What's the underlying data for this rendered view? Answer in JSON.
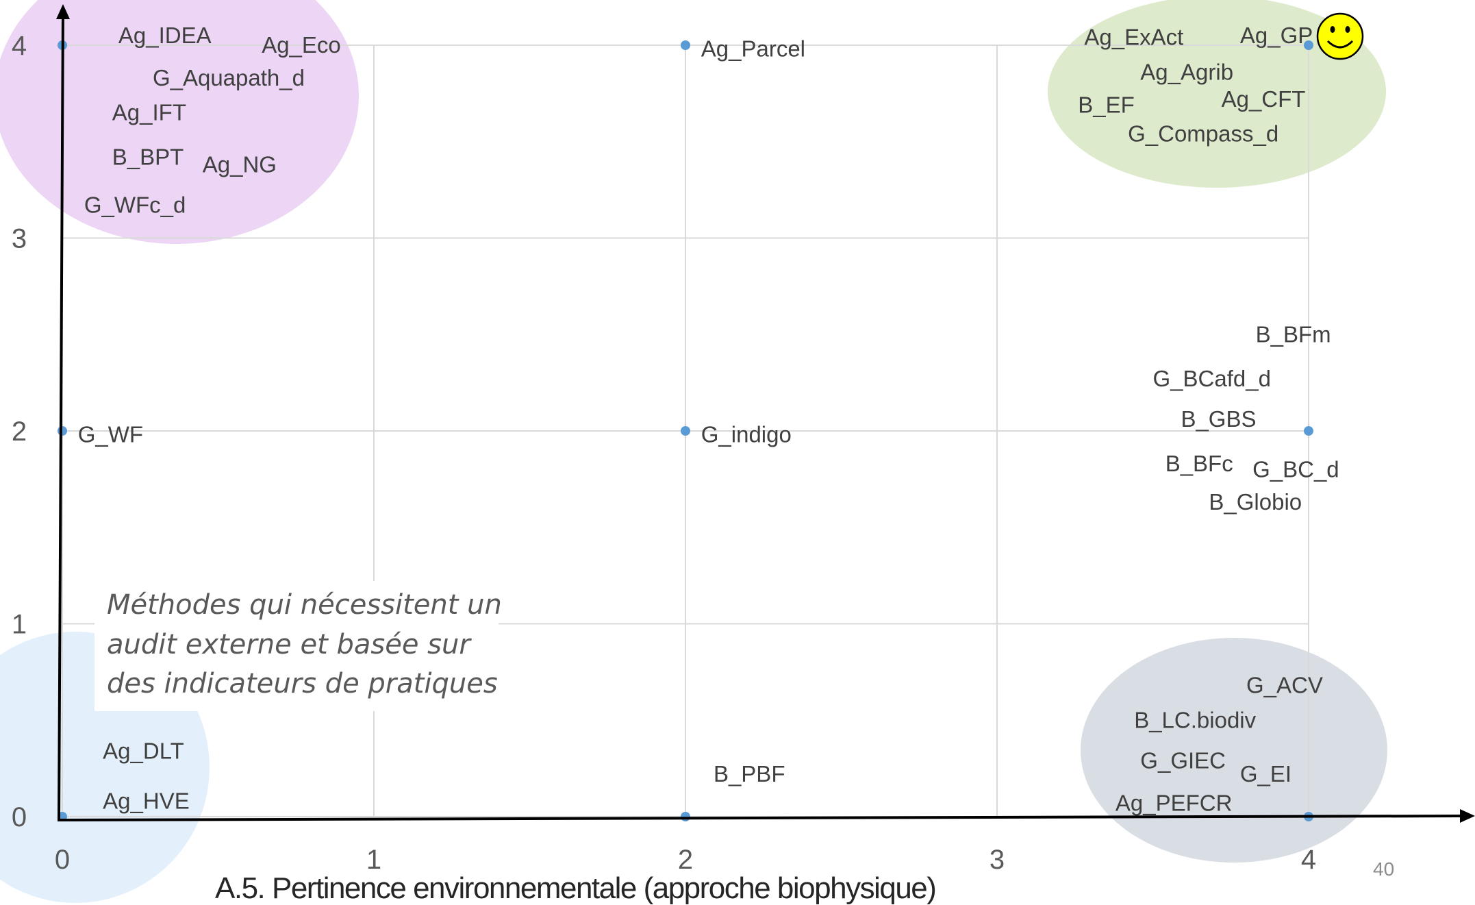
{
  "chart_data": {
    "type": "scatter",
    "xlabel": "A.5. Pertinence environnementale (approche biophysique)",
    "ylabel": "",
    "xlim": [
      0,
      4.5
    ],
    "ylim": [
      0,
      4.1
    ],
    "x_ticks": [
      "0",
      "1",
      "2",
      "3",
      "4"
    ],
    "y_ticks": [
      "0",
      "1",
      "2",
      "3",
      "4"
    ],
    "grid": true,
    "points": [
      {
        "x": 0,
        "y": 4
      },
      {
        "x": 2,
        "y": 4
      },
      {
        "x": 4,
        "y": 4
      },
      {
        "x": 0,
        "y": 2
      },
      {
        "x": 2,
        "y": 2
      },
      {
        "x": 4,
        "y": 2
      },
      {
        "x": 0,
        "y": 0
      },
      {
        "x": 2,
        "y": 0
      },
      {
        "x": 4,
        "y": 0
      }
    ],
    "labels": [
      {
        "text": "Ag_IDEA",
        "x": 0.18,
        "y": 4.05
      },
      {
        "text": "Ag_Eco",
        "x": 0.64,
        "y": 4.0
      },
      {
        "text": "G_Aquapath_d",
        "x": 0.29,
        "y": 3.83
      },
      {
        "text": "Ag_IFT",
        "x": 0.16,
        "y": 3.65
      },
      {
        "text": "B_BPT",
        "x": 0.16,
        "y": 3.42
      },
      {
        "text": "Ag_NG",
        "x": 0.45,
        "y": 3.38
      },
      {
        "text": "G_WFc_d",
        "x": 0.07,
        "y": 3.17
      },
      {
        "text": "Ag_Parcel",
        "x": 2.05,
        "y": 3.98
      },
      {
        "text": "Ag_ExAct",
        "x": 3.28,
        "y": 4.04
      },
      {
        "text": "Ag_GP",
        "x": 3.78,
        "y": 4.05
      },
      {
        "text": "Ag_Agrib",
        "x": 3.46,
        "y": 3.86
      },
      {
        "text": "Ag_CFT",
        "x": 3.72,
        "y": 3.72
      },
      {
        "text": "B_EF",
        "x": 3.26,
        "y": 3.69
      },
      {
        "text": "G_Compass_d",
        "x": 3.42,
        "y": 3.54
      },
      {
        "text": "G_WF",
        "x": 0.05,
        "y": 1.98
      },
      {
        "text": "G_indigo",
        "x": 2.05,
        "y": 1.98
      },
      {
        "text": "B_BFm",
        "x": 3.83,
        "y": 2.5
      },
      {
        "text": "G_BCafd_d",
        "x": 3.5,
        "y": 2.27
      },
      {
        "text": "B_GBS",
        "x": 3.59,
        "y": 2.06
      },
      {
        "text": "B_BFc",
        "x": 3.54,
        "y": 1.83
      },
      {
        "text": "G_BC_d",
        "x": 3.82,
        "y": 1.8
      },
      {
        "text": "B_Globio",
        "x": 3.68,
        "y": 1.63
      },
      {
        "text": "G_ACV",
        "x": 3.8,
        "y": 0.68
      },
      {
        "text": "B_LC.biodiv",
        "x": 3.44,
        "y": 0.5
      },
      {
        "text": "G_GIEC",
        "x": 3.46,
        "y": 0.29
      },
      {
        "text": "G_EI",
        "x": 3.78,
        "y": 0.22
      },
      {
        "text": "Ag_PEFCR",
        "x": 3.38,
        "y": 0.07
      },
      {
        "text": "Ag_DLT",
        "x": 0.13,
        "y": 0.34
      },
      {
        "text": "Ag_HVE",
        "x": 0.13,
        "y": 0.08
      },
      {
        "text": "B_PBF",
        "x": 2.09,
        "y": 0.22
      }
    ],
    "groups": [
      {
        "name": "top-left",
        "color": "#ecd5f5"
      },
      {
        "name": "top-right",
        "color": "#ddeacc"
      },
      {
        "name": "bottom-right",
        "color": "#d9dee4"
      },
      {
        "name": "bottom-left",
        "color": "#e3f0fb"
      }
    ],
    "point_color": "#5b9bd5",
    "annotation": {
      "lines": [
        "Méthodes qui nécessitent un",
        "audit externe et basée sur",
        "des indicateurs de pratiques"
      ]
    },
    "smiley_icon": "smiley-face-icon",
    "page_number": "40"
  }
}
